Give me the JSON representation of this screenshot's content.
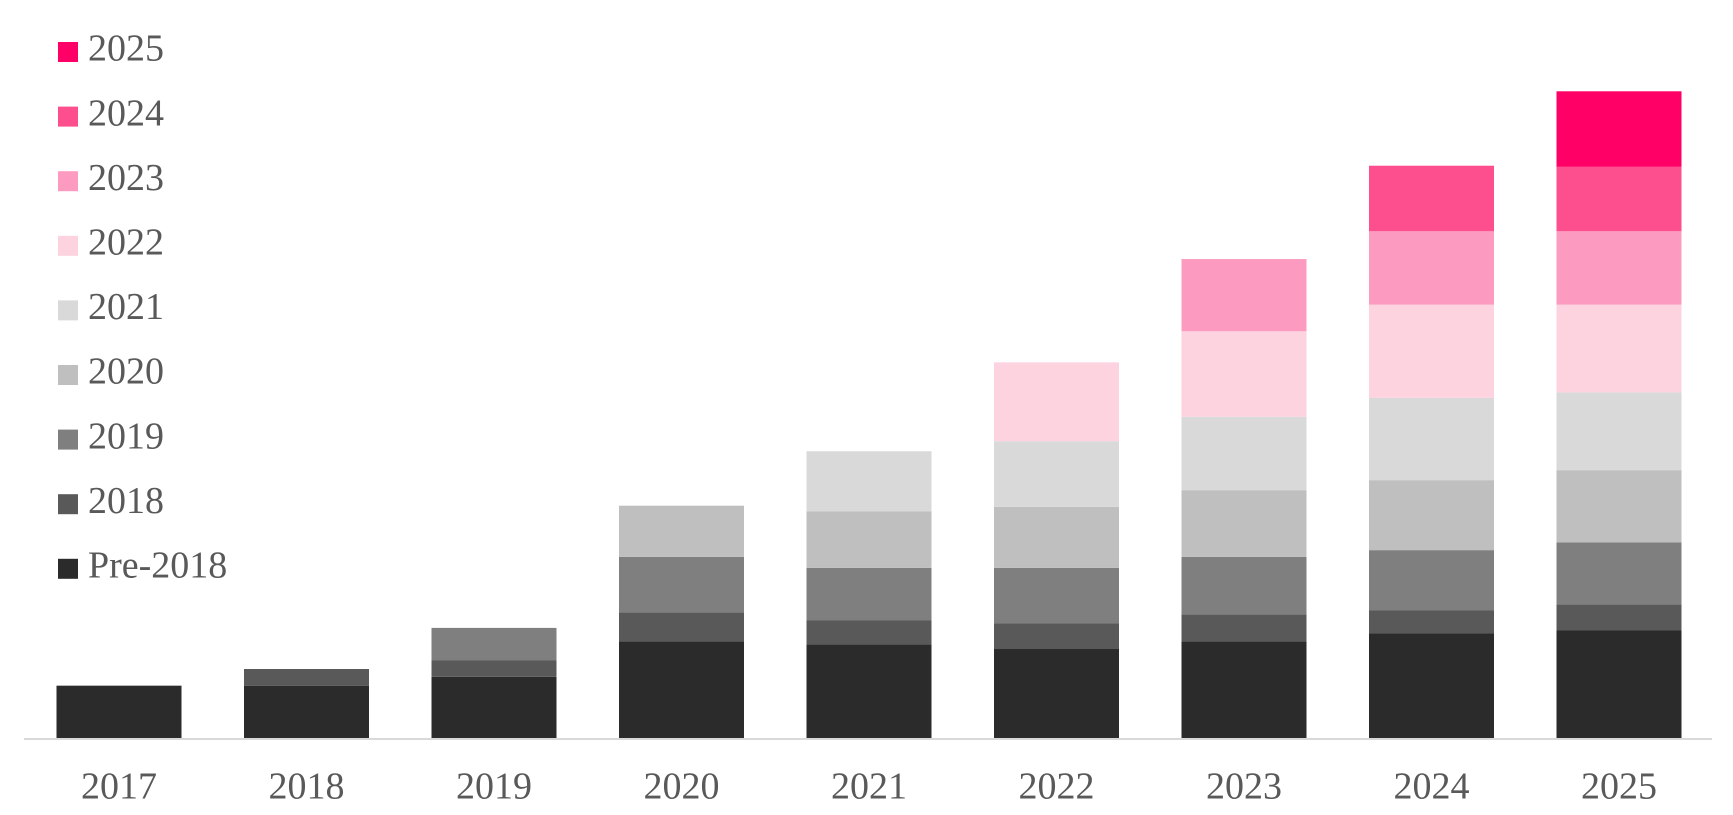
{
  "chart_data": {
    "type": "stacked_bar",
    "categories": [
      "2017",
      "2018",
      "2019",
      "2020",
      "2021",
      "2022",
      "2023",
      "2024",
      "2025"
    ],
    "series": [
      {
        "name": "Pre-2018",
        "color": "#2b2b2b",
        "values": [
          48,
          48,
          56,
          88,
          85,
          81,
          88,
          95,
          98
        ]
      },
      {
        "name": "2018",
        "color": "#595959",
        "values": [
          null,
          15,
          15,
          26,
          22,
          23,
          24,
          21,
          23
        ]
      },
      {
        "name": "2019",
        "color": "#7f7f7f",
        "values": [
          null,
          null,
          29,
          50,
          47,
          50,
          52,
          54,
          56
        ]
      },
      {
        "name": "2020",
        "color": "#bfbfbf",
        "values": [
          null,
          null,
          null,
          46,
          51,
          55,
          60,
          63,
          65
        ]
      },
      {
        "name": "2021",
        "color": "#d9d9d9",
        "values": [
          null,
          null,
          null,
          null,
          54,
          59,
          66,
          74,
          70
        ]
      },
      {
        "name": "2022",
        "color": "#fcd3de",
        "values": [
          null,
          null,
          null,
          null,
          null,
          71,
          77,
          84,
          79
        ]
      },
      {
        "name": "2023",
        "color": "#fc9bbf",
        "values": [
          null,
          null,
          null,
          null,
          null,
          null,
          65,
          66,
          66
        ]
      },
      {
        "name": "2024",
        "color": "#fd4f8e",
        "values": [
          null,
          null,
          null,
          null,
          null,
          null,
          null,
          59,
          58
        ]
      },
      {
        "name": "2025",
        "color": "#ff0066",
        "values": [
          null,
          null,
          null,
          null,
          null,
          null,
          null,
          null,
          68
        ]
      }
    ]
  }
}
